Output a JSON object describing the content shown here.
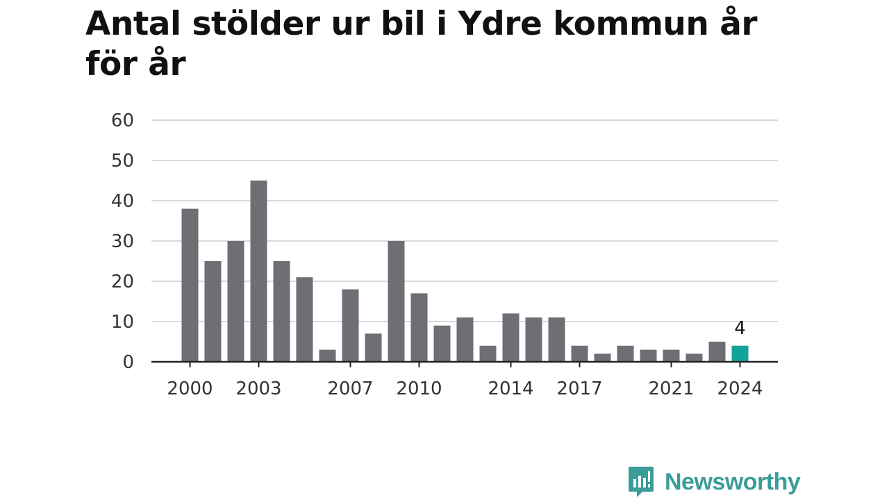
{
  "title": "Antal stölder ur bil i Ydre kommun år för år",
  "brand": {
    "name": "Newsworthy",
    "icon": "newsworthy-logo-icon",
    "color": "#3a9d9a"
  },
  "colors": {
    "bar": "#6f6e74",
    "highlight": "#12a39a",
    "grid": "#d9d9d9",
    "axis": "#222222"
  },
  "chart_data": {
    "type": "bar",
    "title": "Antal stölder ur bil i Ydre kommun år för år",
    "xlabel": "",
    "ylabel": "",
    "categories": [
      "2000",
      "2001",
      "2002",
      "2003",
      "2004",
      "2005",
      "2006",
      "2007",
      "2008",
      "2009",
      "2010",
      "2011",
      "2012",
      "2013",
      "2014",
      "2015",
      "2016",
      "2017",
      "2018",
      "2019",
      "2020",
      "2021",
      "2022",
      "2023",
      "2024"
    ],
    "values": [
      38,
      25,
      30,
      45,
      25,
      21,
      3,
      18,
      7,
      30,
      17,
      9,
      11,
      4,
      12,
      11,
      11,
      4,
      2,
      4,
      3,
      3,
      2,
      5,
      4
    ],
    "x_tick_labels": [
      "2000",
      "2003",
      "2007",
      "2010",
      "2014",
      "2017",
      "2021",
      "2024"
    ],
    "y_ticks": [
      0,
      10,
      20,
      30,
      40,
      50,
      60
    ],
    "ylim": [
      0,
      60
    ],
    "grid": true,
    "highlight": {
      "category": "2024",
      "label": "4"
    }
  }
}
